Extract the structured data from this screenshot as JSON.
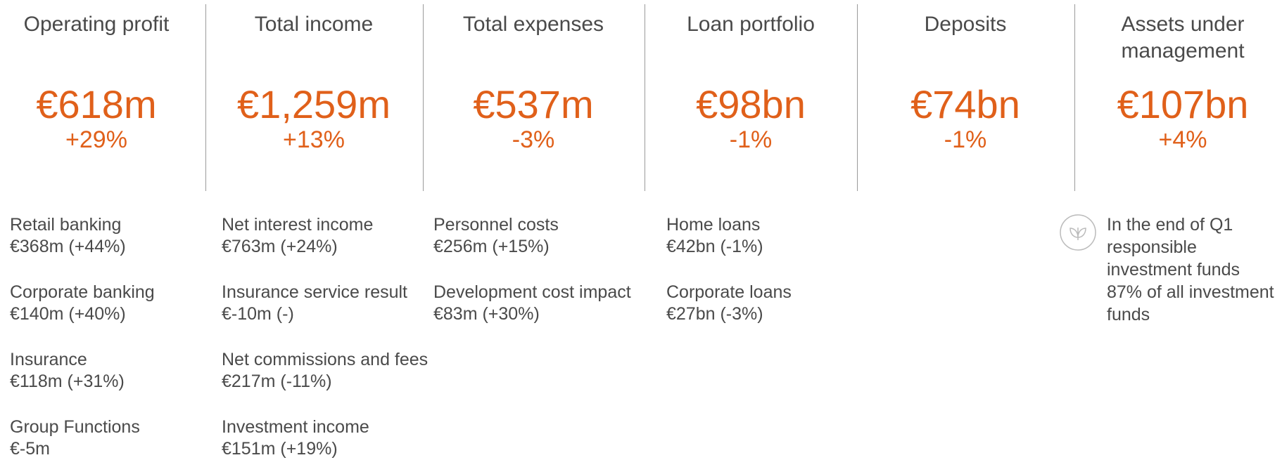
{
  "kpis": [
    {
      "title": "Operating profit",
      "value": "€618m",
      "change": "+29%",
      "details": [
        {
          "label": "Retail banking",
          "value": "€368m (+44%)"
        },
        {
          "label": "Corporate banking",
          "value": "€140m (+40%)"
        },
        {
          "label": "Insurance",
          "value": "€118m (+31%)"
        },
        {
          "label": "Group Functions",
          "value": "€-5m"
        }
      ]
    },
    {
      "title": "Total income",
      "value": "€1,259m",
      "change": "+13%",
      "details": [
        {
          "label": "Net interest income",
          "value": "€763m (+24%)"
        },
        {
          "label": "Insurance service result",
          "value": "€-10m (-)"
        },
        {
          "label": "Net commissions and fees",
          "value": "€217m (-11%)"
        },
        {
          "label": "Investment income",
          "value": "€151m (+19%)"
        }
      ]
    },
    {
      "title": "Total expenses",
      "value": "€537m",
      "change": "-3%",
      "details": [
        {
          "label": "Personnel costs",
          "value": "€256m (+15%)"
        },
        {
          "label": "Development cost impact",
          "value": "€83m (+30%)"
        }
      ]
    },
    {
      "title": "Loan portfolio",
      "value": "€98bn",
      "change": "-1%",
      "details": [
        {
          "label": "Home loans",
          "value": "€42bn (-1%)"
        },
        {
          "label": "Corporate loans",
          "value": "€27bn (-3%)"
        }
      ]
    },
    {
      "title": "Deposits",
      "value": "€74bn",
      "change": "-1%",
      "details": []
    },
    {
      "title": "Assets under management",
      "value": "€107bn",
      "change": "+4%",
      "details": [],
      "note": [
        "In the end of Q1",
        "responsible",
        "investment funds",
        "87% of all investment",
        "funds"
      ]
    }
  ]
}
